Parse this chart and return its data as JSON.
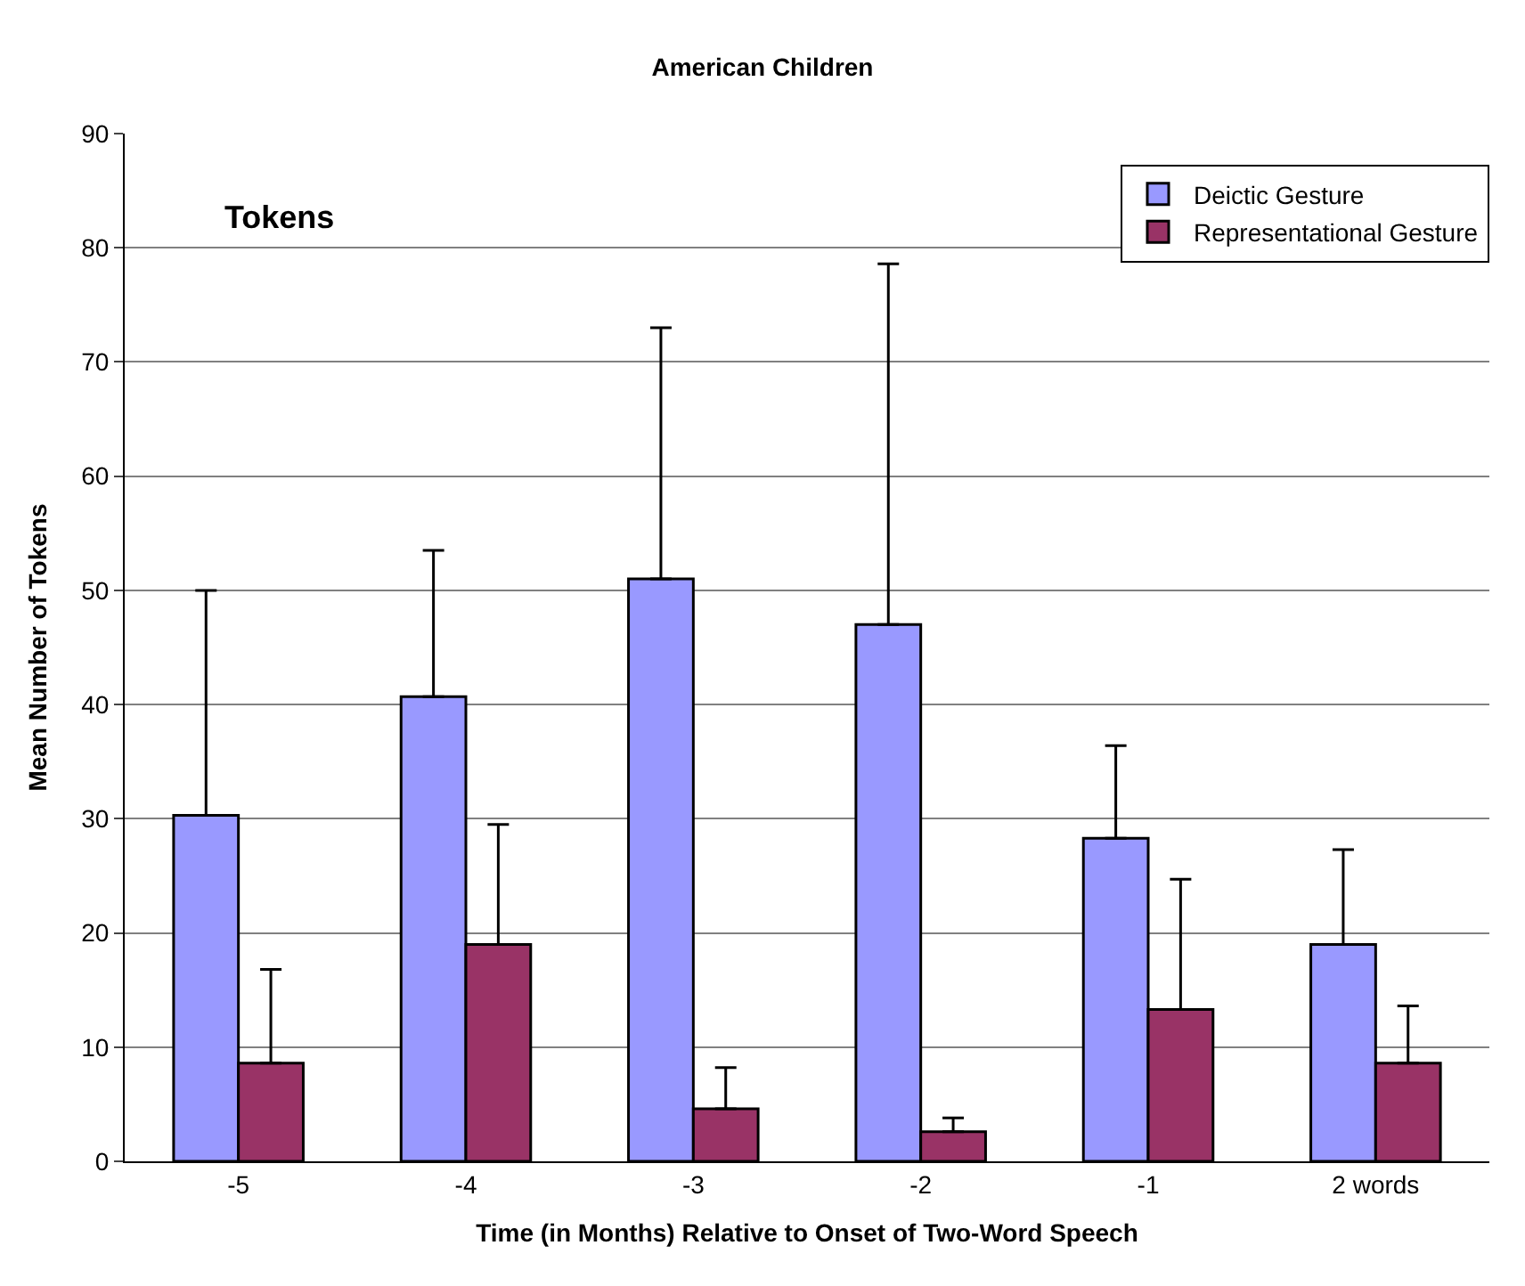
{
  "chart_data": {
    "type": "bar",
    "title": "American Children",
    "xlabel": "Time (in Months) Relative to Onset of Two-Word Speech",
    "ylabel": "Mean Number of Tokens",
    "categories": [
      "-5",
      "-4",
      "-3",
      "-2",
      "-1",
      "2 words"
    ],
    "series": [
      {
        "name": "Deictic Gesture",
        "color": "#9999ff",
        "values": [
          30.3,
          40.7,
          51.0,
          47.0,
          28.3,
          19.0
        ],
        "errors": [
          [
            30.3,
            50.0
          ],
          [
            40.7,
            53.5
          ],
          [
            51.0,
            73.0
          ],
          [
            47.0,
            78.6
          ],
          [
            28.3,
            36.4
          ],
          [
            19.0,
            27.3
          ]
        ]
      },
      {
        "name": "Representational Gesture",
        "color": "#993366",
        "values": [
          8.6,
          19.0,
          4.6,
          2.6,
          13.3,
          8.6
        ],
        "errors": [
          [
            8.6,
            16.8
          ],
          [
            19.0,
            29.5
          ],
          [
            4.6,
            8.2
          ],
          [
            2.6,
            3.8
          ],
          [
            13.3,
            24.7
          ],
          [
            8.6,
            13.6
          ]
        ]
      }
    ],
    "ylim": [
      0,
      90
    ],
    "yticks": [
      0,
      10,
      20,
      30,
      40,
      50,
      60,
      70,
      80,
      90
    ],
    "annotations": [
      "Tokens"
    ],
    "grid": "y",
    "legend": "top right"
  }
}
